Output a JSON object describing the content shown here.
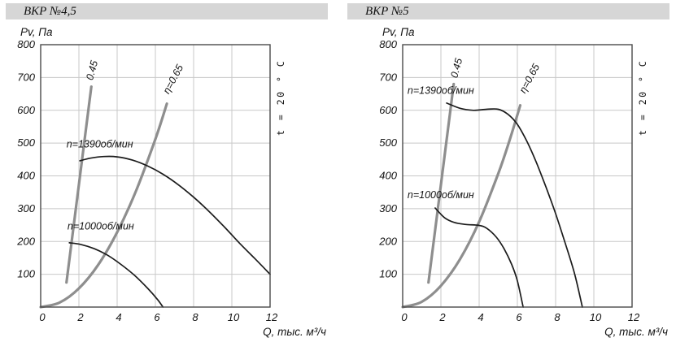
{
  "colors": {
    "background": "#ffffff",
    "title_bar": "#d6d6d6",
    "grid": "#c8c8c8",
    "frame": "#4a4a4a",
    "curve": "#1b1b1b",
    "efficiency": "#8e8e8e",
    "text": "#141414"
  },
  "chart_data": [
    {
      "type": "line",
      "title": "ВКР №4,5",
      "ylabel": "Pv, Па",
      "xlabel": "Q, тыс. м³/ч",
      "right_note": "t = 20 ° C",
      "xlim": [
        0,
        12
      ],
      "ylim": [
        0,
        800
      ],
      "xticks": [
        0,
        2,
        4,
        6,
        8,
        10,
        12
      ],
      "yticks": [
        800,
        700,
        600,
        500,
        400,
        300,
        200,
        100
      ],
      "grid": true,
      "legend_position": "none",
      "series": [
        {
          "name": "n-1390-curve",
          "label": "n=1390об/мин",
          "color_key": "curve",
          "width": 1.7,
          "label_pos": [
            1.35,
            487
          ],
          "label_rotation": 0,
          "points": [
            [
              2.05,
              446
            ],
            [
              2.6,
              454
            ],
            [
              3.3,
              459
            ],
            [
              4,
              458
            ],
            [
              4.8,
              448
            ],
            [
              5.6,
              430
            ],
            [
              6.4,
              405
            ],
            [
              7.2,
              373
            ],
            [
              8,
              335
            ],
            [
              8.8,
              292
            ],
            [
              9.6,
              245
            ],
            [
              10.4,
              195
            ],
            [
              11.2,
              148
            ],
            [
              12,
              100
            ]
          ]
        },
        {
          "name": "n-1000-curve",
          "label": "n=1000об/мин",
          "color_key": "curve",
          "width": 1.7,
          "label_pos": [
            1.4,
            237
          ],
          "label_rotation": 0,
          "points": [
            [
              1.5,
              196
            ],
            [
              2.1,
              191
            ],
            [
              2.8,
              178
            ],
            [
              3.5,
              158
            ],
            [
              4.2,
              130
            ],
            [
              4.9,
              97
            ],
            [
              5.6,
              57
            ],
            [
              6.1,
              24
            ],
            [
              6.4,
              0
            ]
          ]
        },
        {
          "name": "efficiency-045-line",
          "label": "0.45",
          "color_key": "efficiency",
          "width": 3.2,
          "label_pos": [
            2.72,
            690
          ],
          "label_rotation": -75,
          "points": [
            [
              1.35,
              75
            ],
            [
              2.65,
              672
            ]
          ]
        },
        {
          "name": "efficiency-065-curve",
          "label": "η=0.65",
          "color_key": "efficiency",
          "width": 3.2,
          "label_pos": [
            6.7,
            648
          ],
          "label_rotation": -62,
          "points": [
            [
              0,
              0
            ],
            [
              1,
              14
            ],
            [
              2,
              57
            ],
            [
              3,
              128
            ],
            [
              4,
              228
            ],
            [
              5,
              356
            ],
            [
              6,
              512
            ],
            [
              6.6,
              620
            ]
          ]
        }
      ]
    },
    {
      "type": "line",
      "title": "ВКР №5",
      "ylabel": "Pv, Па",
      "xlabel": "Q, тыс. м³/ч",
      "right_note": "t = 20 ° C",
      "xlim": [
        0,
        12
      ],
      "ylim": [
        0,
        800
      ],
      "xticks": [
        0,
        2,
        4,
        6,
        8,
        10,
        12
      ],
      "yticks": [
        800,
        700,
        600,
        500,
        400,
        300,
        200,
        100
      ],
      "grid": true,
      "legend_position": "none",
      "series": [
        {
          "name": "n-1390-curve",
          "label": "n=1390об/мин",
          "color_key": "curve",
          "width": 1.7,
          "label_pos": [
            0.25,
            650
          ],
          "label_rotation": 0,
          "points": [
            [
              2.3,
              622
            ],
            [
              3,
              606
            ],
            [
              3.7,
              600
            ],
            [
              4.4,
              603
            ],
            [
              5,
              603
            ],
            [
              5.5,
              588
            ],
            [
              6,
              557
            ],
            [
              6.5,
              505
            ],
            [
              7,
              440
            ],
            [
              7.5,
              365
            ],
            [
              8,
              285
            ],
            [
              8.5,
              195
            ],
            [
              9,
              100
            ],
            [
              9.4,
              0
            ]
          ]
        },
        {
          "name": "n-1000-curve",
          "label": "n=1000об/мин",
          "color_key": "curve",
          "width": 1.7,
          "label_pos": [
            0.25,
            332
          ],
          "label_rotation": 0,
          "points": [
            [
              1.7,
              302
            ],
            [
              2.2,
              272
            ],
            [
              2.7,
              258
            ],
            [
              3.3,
              252
            ],
            [
              4,
              249
            ],
            [
              4.4,
              240
            ],
            [
              4.9,
              213
            ],
            [
              5.3,
              178
            ],
            [
              5.7,
              130
            ],
            [
              6,
              80
            ],
            [
              6.3,
              0
            ]
          ]
        },
        {
          "name": "efficiency-045-line",
          "label": "0.45",
          "color_key": "efficiency",
          "width": 3.2,
          "label_pos": [
            2.85,
            697
          ],
          "label_rotation": -75,
          "points": [
            [
              1.35,
              75
            ],
            [
              2.67,
              680
            ]
          ]
        },
        {
          "name": "efficiency-065-curve",
          "label": "η=0.65",
          "color_key": "efficiency",
          "width": 3.2,
          "label_pos": [
            6.4,
            650
          ],
          "label_rotation": -62,
          "points": [
            [
              0,
              0
            ],
            [
              1,
              16
            ],
            [
              2,
              65
            ],
            [
              3,
              146
            ],
            [
              4,
              260
            ],
            [
              5,
              407
            ],
            [
              5.6,
              510
            ],
            [
              6.15,
              615
            ]
          ]
        }
      ]
    }
  ]
}
